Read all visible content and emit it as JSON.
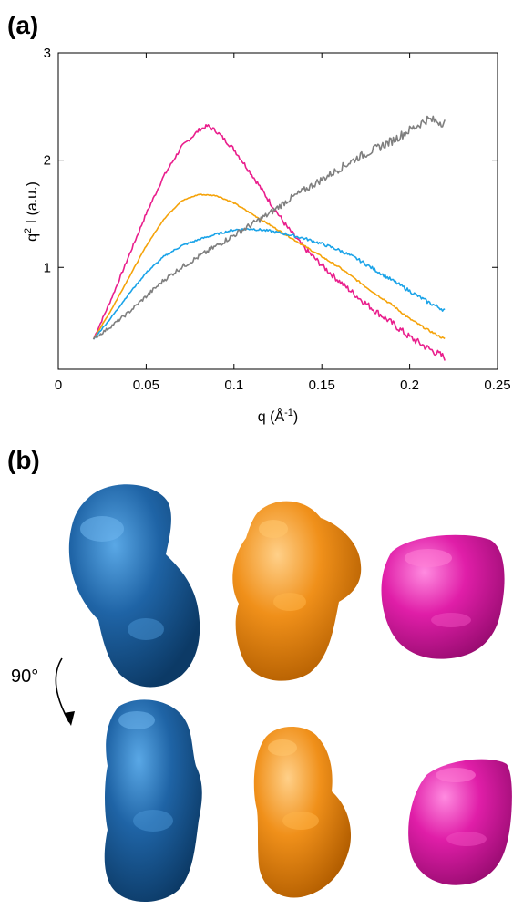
{
  "panels": {
    "a": "(a)",
    "b": "(b)"
  },
  "chart_data": {
    "type": "line",
    "xlabel": "q (Å",
    "xlabel_sup": "-1",
    "xlabel_end": ")",
    "ylabel": "q",
    "ylabel_sup": "2",
    "ylabel_end": " I (a.u.)",
    "xlim": [
      0,
      0.25
    ],
    "ylim": [
      0.05,
      3
    ],
    "xticks": [
      0,
      0.05,
      0.1,
      0.15,
      0.2,
      0.25
    ],
    "xtick_labels": [
      "0",
      "0.05",
      "0.1",
      "0.15",
      "0.2",
      "0.25"
    ],
    "yticks": [
      1,
      2,
      3
    ],
    "ytick_labels": [
      "1",
      "2",
      "3"
    ],
    "grid": false,
    "series": [
      {
        "color": "#e91e8c",
        "noise": 0.035,
        "x": [
          0.02,
          0.03,
          0.04,
          0.05,
          0.06,
          0.07,
          0.08,
          0.085,
          0.09,
          0.1,
          0.11,
          0.12,
          0.13,
          0.14,
          0.15,
          0.16,
          0.17,
          0.18,
          0.19,
          0.2,
          0.21,
          0.22
        ],
        "y": [
          0.33,
          0.7,
          1.1,
          1.5,
          1.85,
          2.12,
          2.28,
          2.32,
          2.27,
          2.1,
          1.87,
          1.62,
          1.38,
          1.18,
          1.02,
          0.87,
          0.73,
          0.6,
          0.48,
          0.35,
          0.25,
          0.16
        ]
      },
      {
        "color": "#f5a30a",
        "noise": 0.01,
        "x": [
          0.02,
          0.03,
          0.04,
          0.05,
          0.06,
          0.07,
          0.08,
          0.09,
          0.1,
          0.11,
          0.12,
          0.13,
          0.14,
          0.15,
          0.16,
          0.17,
          0.18,
          0.19,
          0.2,
          0.21,
          0.22
        ],
        "y": [
          0.33,
          0.6,
          0.9,
          1.2,
          1.45,
          1.62,
          1.68,
          1.67,
          1.6,
          1.5,
          1.4,
          1.3,
          1.2,
          1.1,
          1.0,
          0.88,
          0.76,
          0.65,
          0.52,
          0.42,
          0.33
        ]
      },
      {
        "color": "#1aa3e8",
        "noise": 0.018,
        "x": [
          0.02,
          0.03,
          0.04,
          0.05,
          0.06,
          0.07,
          0.08,
          0.09,
          0.1,
          0.11,
          0.12,
          0.13,
          0.14,
          0.15,
          0.16,
          0.17,
          0.18,
          0.19,
          0.2,
          0.21,
          0.22
        ],
        "y": [
          0.33,
          0.53,
          0.75,
          0.95,
          1.1,
          1.2,
          1.26,
          1.31,
          1.35,
          1.36,
          1.34,
          1.31,
          1.27,
          1.22,
          1.16,
          1.08,
          0.98,
          0.88,
          0.78,
          0.68,
          0.6
        ]
      },
      {
        "color": "#7f7f7f",
        "noise": 0.045,
        "x": [
          0.02,
          0.03,
          0.04,
          0.05,
          0.06,
          0.07,
          0.08,
          0.09,
          0.1,
          0.11,
          0.12,
          0.13,
          0.14,
          0.15,
          0.16,
          0.17,
          0.18,
          0.19,
          0.2,
          0.21,
          0.22
        ],
        "y": [
          0.33,
          0.45,
          0.58,
          0.73,
          0.88,
          1.0,
          1.1,
          1.2,
          1.3,
          1.4,
          1.5,
          1.62,
          1.72,
          1.82,
          1.92,
          2.02,
          2.1,
          2.18,
          2.28,
          2.38,
          2.35
        ]
      }
    ]
  },
  "rotation_label": "90°",
  "models": {
    "colors": {
      "blue": "#1f64a6",
      "orange": "#f0901a",
      "magenta": "#e01ea8"
    }
  }
}
